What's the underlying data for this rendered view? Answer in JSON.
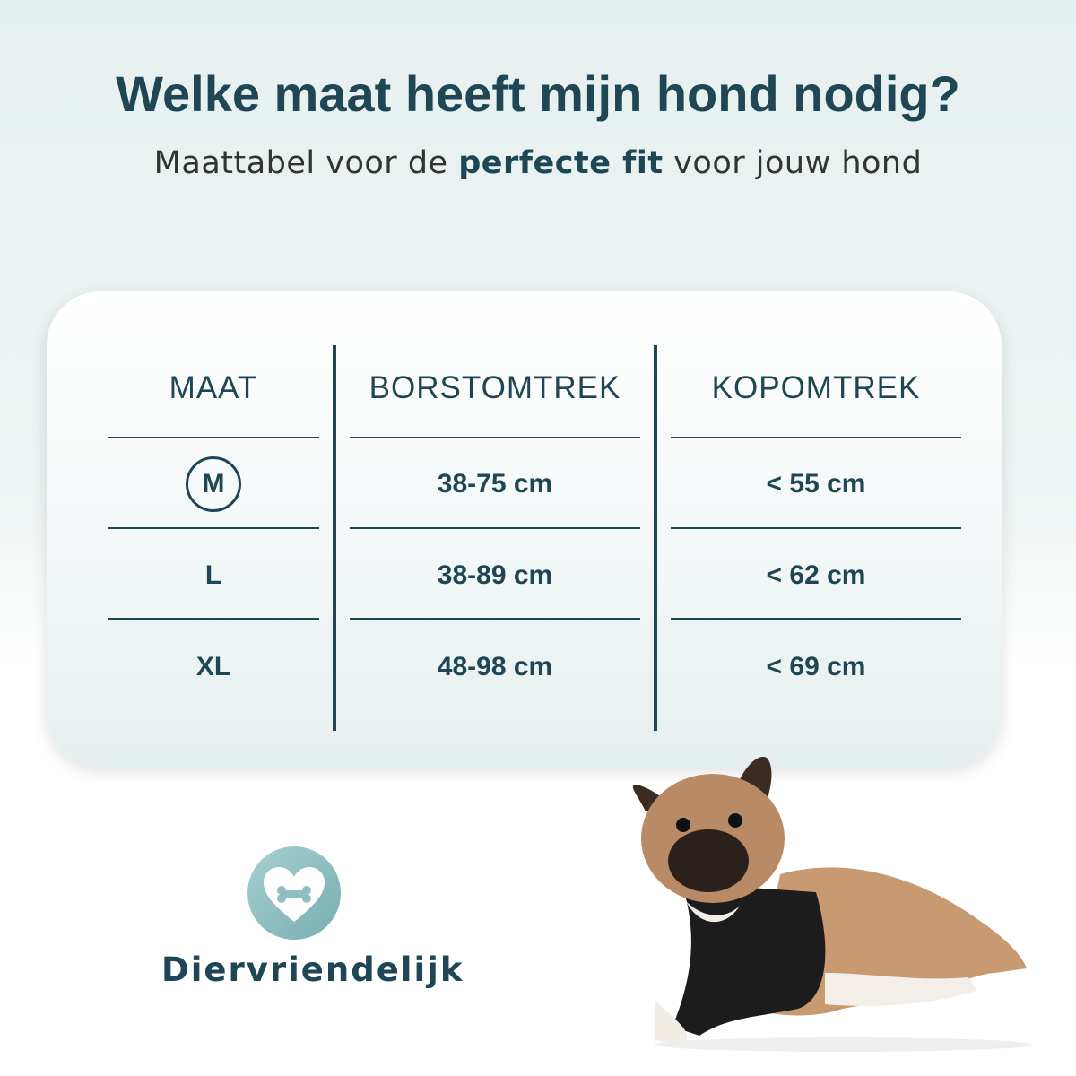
{
  "title": "Welke maat heeft mijn hond nodig?",
  "subtitle": {
    "before": "Maattabel voor de ",
    "bold": "perfecte fit",
    "after": " voor jouw hond"
  },
  "table": {
    "headers": [
      "MAAT",
      "BORSTOMTREK",
      "KOPOMTREK"
    ],
    "rows": [
      {
        "size": "M",
        "chest": "38-75 cm",
        "head": "< 55 cm",
        "highlighted": true
      },
      {
        "size": "L",
        "chest": "38-89 cm",
        "head": "< 62 cm"
      },
      {
        "size": "XL",
        "chest": "48-98 cm",
        "head": "< 69 cm"
      }
    ]
  },
  "badge": {
    "icon": "heart-bone-icon",
    "label": "Diervriendelijk"
  },
  "colors": {
    "primary": "#1e4655",
    "badge": "#8dbfc1"
  }
}
